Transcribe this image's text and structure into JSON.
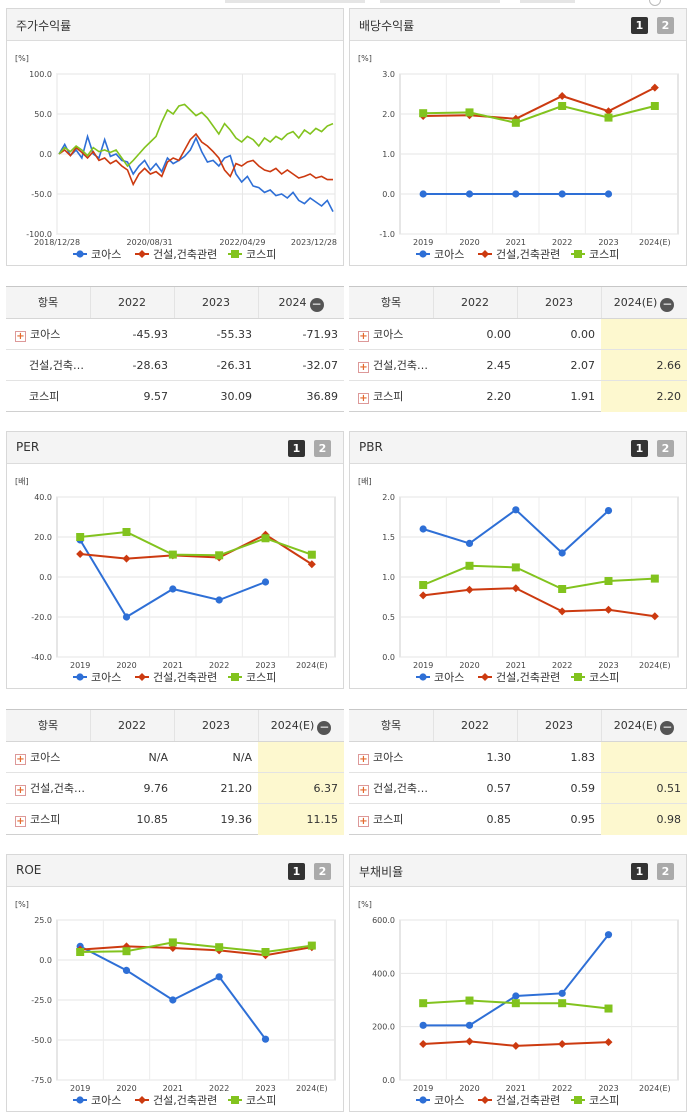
{
  "colors": {
    "koas": "#2e6fd6",
    "construction": "#cc3a10",
    "kospi": "#82c31e"
  },
  "legend": [
    "코아스",
    "건설,건축관련",
    "코스피"
  ],
  "toggle": {
    "one": "1",
    "two": "2"
  },
  "icons": {
    "expand": "plus-box-icon",
    "collapse": "minus-circle-icon"
  },
  "panels": {
    "stock_return": {
      "title": "주가수익률",
      "chart_data": {
        "type": "line",
        "unit": "[%]",
        "yticks": [
          "100.0",
          "50.0",
          "0.0",
          "-50.0",
          "-100.0"
        ],
        "ylim": [
          -100,
          100
        ],
        "xticks": [
          "2018/12/28",
          "2020/08/31",
          "2022/04/29",
          "2023/12/28"
        ],
        "series": [
          {
            "name": "코아스",
            "values": [
              0,
              12,
              -2,
              5,
              -5,
              22,
              0,
              -5,
              18,
              -3,
              0,
              -8,
              -10,
              -25,
              -15,
              -8,
              -20,
              -12,
              -22,
              -5,
              -12,
              -8,
              -3,
              5,
              20,
              3,
              -10,
              -8,
              -15,
              -5,
              -2,
              -25,
              -35,
              -28,
              -40,
              -42,
              -48,
              -45,
              -52,
              -50,
              -55,
              -48,
              -58,
              -62,
              -55,
              -60,
              -65,
              -58,
              -72
            ]
          },
          {
            "name": "건설,건축관련",
            "values": [
              0,
              5,
              -2,
              8,
              2,
              -5,
              3,
              -8,
              -5,
              -12,
              -8,
              -15,
              -20,
              -38,
              -25,
              -18,
              -25,
              -22,
              -28,
              -10,
              -5,
              -8,
              5,
              18,
              25,
              15,
              10,
              3,
              -5,
              -20,
              -28,
              -12,
              -15,
              -10,
              -8,
              -15,
              -20,
              -22,
              -18,
              -25,
              -20,
              -25,
              -30,
              -28,
              -25,
              -30,
              -28,
              -32,
              -32
            ]
          },
          {
            "name": "코스피",
            "values": [
              0,
              8,
              3,
              10,
              5,
              -2,
              8,
              3,
              5,
              2,
              5,
              -5,
              -15,
              -8,
              0,
              8,
              15,
              22,
              40,
              55,
              50,
              60,
              62,
              55,
              48,
              52,
              45,
              35,
              25,
              38,
              30,
              20,
              15,
              22,
              18,
              10,
              20,
              15,
              22,
              18,
              25,
              28,
              20,
              30,
              25,
              32,
              28,
              35,
              38
            ]
          }
        ]
      }
    },
    "dividend_yield": {
      "title": "배당수익률",
      "chart_data": {
        "type": "line",
        "unit": "[%]",
        "yticks": [
          "3.0",
          "2.0",
          "1.0",
          "0.0",
          "-1.0"
        ],
        "ylim": [
          -1,
          3
        ],
        "categories": [
          "2019",
          "2020",
          "2021",
          "2022",
          "2023",
          "2024(E)"
        ],
        "series": [
          {
            "name": "코아스",
            "values": [
              0,
              0,
              0,
              0,
              0,
              null
            ]
          },
          {
            "name": "건설,건축관련",
            "values": [
              1.95,
              1.97,
              1.88,
              2.45,
              2.07,
              2.66
            ]
          },
          {
            "name": "코스피",
            "values": [
              2.02,
              2.04,
              1.78,
              2.2,
              1.91,
              2.2
            ]
          }
        ]
      }
    },
    "per": {
      "title": "PER",
      "chart_data": {
        "type": "line",
        "unit": "[배]",
        "yticks": [
          "40.0",
          "20.0",
          "0.0",
          "-20.0",
          "-40.0"
        ],
        "ylim": [
          -40,
          40
        ],
        "categories": [
          "2019",
          "2020",
          "2021",
          "2022",
          "2023",
          "2024(E)"
        ],
        "series": [
          {
            "name": "코아스",
            "values": [
              18.5,
              -20,
              -6,
              -11.5,
              -2.5,
              null
            ]
          },
          {
            "name": "건설,건축관련",
            "values": [
              11.5,
              9.2,
              10.8,
              9.76,
              21.2,
              6.37
            ]
          },
          {
            "name": "코스피",
            "values": [
              20,
              22.5,
              11.2,
              10.85,
              19.36,
              11.15
            ]
          }
        ]
      }
    },
    "pbr": {
      "title": "PBR",
      "chart_data": {
        "type": "line",
        "unit": "[배]",
        "yticks": [
          "2.0",
          "1.5",
          "1.0",
          "0.5",
          "0.0"
        ],
        "ylim": [
          0,
          2
        ],
        "categories": [
          "2019",
          "2020",
          "2021",
          "2022",
          "2023",
          "2024(E)"
        ],
        "series": [
          {
            "name": "코아스",
            "values": [
              1.6,
              1.42,
              1.84,
              1.3,
              1.83,
              null
            ]
          },
          {
            "name": "건설,건축관련",
            "values": [
              0.77,
              0.84,
              0.86,
              0.57,
              0.59,
              0.51
            ]
          },
          {
            "name": "코스피",
            "values": [
              0.9,
              1.14,
              1.12,
              0.85,
              0.95,
              0.98
            ]
          }
        ]
      }
    },
    "roe": {
      "title": "ROE",
      "chart_data": {
        "type": "line",
        "unit": "[%]",
        "yticks": [
          "25.0",
          "0.0",
          "-25.0",
          "-50.0",
          "-75.0"
        ],
        "ylim": [
          -75,
          25
        ],
        "categories": [
          "2019",
          "2020",
          "2021",
          "2022",
          "2023",
          "2024(E)"
        ],
        "series": [
          {
            "name": "코아스",
            "values": [
              8.5,
              -6.5,
              -25,
              -10.5,
              -49.5,
              null
            ]
          },
          {
            "name": "건설,건축관련",
            "values": [
              6.5,
              8.5,
              7.5,
              6,
              3,
              8
            ]
          },
          {
            "name": "코스피",
            "values": [
              5,
              5.5,
              11,
              8,
              5,
              9
            ]
          }
        ]
      }
    },
    "debt_ratio": {
      "title": "부채비율",
      "chart_data": {
        "type": "line",
        "unit": "[%]",
        "yticks": [
          "600.0",
          "400.0",
          "200.0",
          "0.0"
        ],
        "ylim": [
          0,
          600
        ],
        "categories": [
          "2019",
          "2020",
          "2021",
          "2022",
          "2023",
          "2024(E)"
        ],
        "series": [
          {
            "name": "코아스",
            "values": [
              205,
              205,
              315,
              325,
              545,
              null
            ]
          },
          {
            "name": "건설,건축관련",
            "values": [
              135,
              145,
              128,
              135,
              142,
              null
            ]
          },
          {
            "name": "코스피",
            "values": [
              288,
              298,
              288,
              288,
              268,
              null
            ]
          }
        ]
      }
    }
  },
  "tables": {
    "stock_return": {
      "headers": [
        "항목",
        "2022",
        "2023",
        "2024"
      ],
      "rows": [
        {
          "label": "코아스",
          "expand": true,
          "values": [
            "-45.93",
            "-55.33",
            "-71.93"
          ]
        },
        {
          "label": "건설,건축…",
          "expand": false,
          "values": [
            "-28.63",
            "-26.31",
            "-32.07"
          ]
        },
        {
          "label": "코스피",
          "expand": false,
          "values": [
            "9.57",
            "30.09",
            "36.89"
          ]
        }
      ]
    },
    "dividend_yield": {
      "headers": [
        "항목",
        "2022",
        "2023",
        "2024(E)"
      ],
      "rows": [
        {
          "label": "코아스",
          "expand": true,
          "values": [
            "0.00",
            "0.00",
            ""
          ]
        },
        {
          "label": "건설,건축…",
          "expand": true,
          "values": [
            "2.45",
            "2.07",
            "2.66"
          ]
        },
        {
          "label": "코스피",
          "expand": true,
          "values": [
            "2.20",
            "1.91",
            "2.20"
          ]
        }
      ]
    },
    "per": {
      "headers": [
        "항목",
        "2022",
        "2023",
        "2024(E)"
      ],
      "rows": [
        {
          "label": "코아스",
          "expand": true,
          "values": [
            "N/A",
            "N/A",
            ""
          ]
        },
        {
          "label": "건설,건축…",
          "expand": true,
          "values": [
            "9.76",
            "21.20",
            "6.37"
          ]
        },
        {
          "label": "코스피",
          "expand": true,
          "values": [
            "10.85",
            "19.36",
            "11.15"
          ]
        }
      ]
    },
    "pbr": {
      "headers": [
        "항목",
        "2022",
        "2023",
        "2024(E)"
      ],
      "rows": [
        {
          "label": "코아스",
          "expand": true,
          "values": [
            "1.30",
            "1.83",
            ""
          ]
        },
        {
          "label": "건설,건축…",
          "expand": true,
          "values": [
            "0.57",
            "0.59",
            "0.51"
          ]
        },
        {
          "label": "코스피",
          "expand": true,
          "values": [
            "0.85",
            "0.95",
            "0.98"
          ]
        }
      ]
    }
  }
}
